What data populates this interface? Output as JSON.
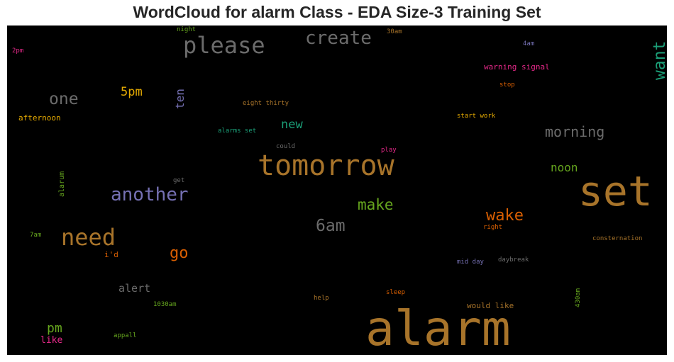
{
  "chart_data": {
    "type": "wordcloud",
    "title": "WordCloud for alarm Class - EDA Size-3 Training Set",
    "background": "#000000",
    "words": [
      {
        "text": "alarm",
        "color": "#a8742a"
      },
      {
        "text": "set",
        "color": "#a8742a"
      },
      {
        "text": "tomorrow",
        "color": "#a8742a"
      },
      {
        "text": "please",
        "color": "#6b6b6b"
      },
      {
        "text": "create",
        "color": "#6b6b6b"
      },
      {
        "text": "want",
        "color": "#1b9e77"
      },
      {
        "text": "need",
        "color": "#a8742a"
      },
      {
        "text": "another",
        "color": "#7570b3"
      },
      {
        "text": "one",
        "color": "#6b6b6b"
      },
      {
        "text": "morning",
        "color": "#6b6b6b"
      },
      {
        "text": "6am",
        "color": "#6b6b6b"
      },
      {
        "text": "make",
        "color": "#66a61e"
      },
      {
        "text": "wake",
        "color": "#d95f02"
      },
      {
        "text": "go",
        "color": "#d95f02"
      },
      {
        "text": "5pm",
        "color": "#e6ab02"
      },
      {
        "text": "ten",
        "color": "#7570b3"
      },
      {
        "text": "new",
        "color": "#1b9e77"
      },
      {
        "text": "noon",
        "color": "#66a61e"
      },
      {
        "text": "pm",
        "color": "#66a61e"
      },
      {
        "text": "alert",
        "color": "#6b6b6b"
      },
      {
        "text": "like",
        "color": "#e7298a"
      },
      {
        "text": "afternoon",
        "color": "#e6ab02"
      },
      {
        "text": "warning signal",
        "color": "#e7298a"
      },
      {
        "text": "would like",
        "color": "#a8742a"
      },
      {
        "text": "alarum",
        "color": "#66a61e"
      },
      {
        "text": "eight thirty",
        "color": "#a8742a"
      },
      {
        "text": "alarms set",
        "color": "#1b9e77"
      },
      {
        "text": "start work",
        "color": "#e6ab02"
      },
      {
        "text": "stop",
        "color": "#d95f02"
      },
      {
        "text": "right",
        "color": "#d95f02"
      },
      {
        "text": "i'd",
        "color": "#d95f02"
      },
      {
        "text": "mid day",
        "color": "#7570b3"
      },
      {
        "text": "daybreak",
        "color": "#6b6b6b"
      },
      {
        "text": "consternation",
        "color": "#a8742a"
      },
      {
        "text": "sleep",
        "color": "#d95f02"
      },
      {
        "text": "help",
        "color": "#a8742a"
      },
      {
        "text": "1030am",
        "color": "#66a61e"
      },
      {
        "text": "430am",
        "color": "#66a61e"
      },
      {
        "text": "appall",
        "color": "#66a61e"
      },
      {
        "text": "could",
        "color": "#6b6b6b"
      },
      {
        "text": "play",
        "color": "#e7298a"
      },
      {
        "text": "get",
        "color": "#6b6b6b"
      },
      {
        "text": "7am",
        "color": "#66a61e"
      },
      {
        "text": "2pm",
        "color": "#e7298a"
      },
      {
        "text": "night",
        "color": "#66a61e"
      },
      {
        "text": "30am",
        "color": "#a8742a"
      },
      {
        "text": "4am",
        "color": "#7570b3"
      }
    ]
  }
}
